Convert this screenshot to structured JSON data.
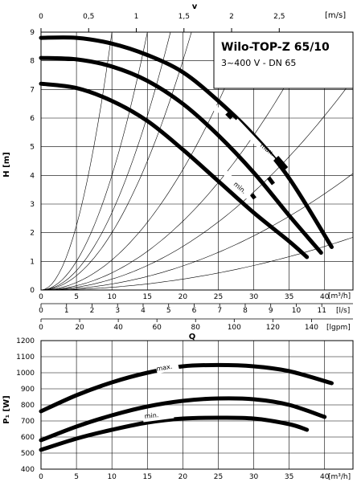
{
  "chart_data": [
    {
      "id": "hq",
      "type": "line",
      "title": "Wilo-TOP-Z 65/10",
      "subtitle": "3~400 V - DN 65",
      "ylabel": "H [m]",
      "x_unit": "[m³/h]",
      "ylim": [
        0,
        9
      ],
      "xlim": [
        0,
        44
      ],
      "x_ticks": [
        0,
        5,
        10,
        15,
        20,
        25,
        30,
        35,
        40
      ],
      "y_ticks": [
        0,
        1,
        2,
        3,
        4,
        5,
        6,
        7,
        8,
        9
      ],
      "grid": true,
      "secondary_axes": [
        {
          "id": "v",
          "label": "v",
          "unit": "[m/s]",
          "ticks": [
            "0",
            "0,5",
            "1",
            "1,5",
            "2",
            "2,5"
          ],
          "values_m3h": [
            0,
            6.72,
            13.44,
            20.16,
            26.88,
            33.6
          ]
        },
        {
          "id": "ls",
          "unit": "[l/s]",
          "ticks": [
            "0",
            "1",
            "2",
            "3",
            "4",
            "5",
            "6",
            "7",
            "8",
            "9",
            "10",
            "11"
          ],
          "values_m3h": [
            0,
            3.6,
            7.2,
            10.8,
            14.4,
            18,
            21.6,
            25.2,
            28.8,
            32.4,
            36,
            39.6
          ]
        },
        {
          "id": "lgpm",
          "unit": "[lgpm]",
          "ticks": [
            "0",
            "20",
            "40",
            "60",
            "80",
            "100",
            "120",
            "140"
          ],
          "values_m3h": [
            0,
            5.45,
            10.9,
            16.35,
            21.8,
            27.25,
            32.7,
            38.15
          ]
        }
      ],
      "x_axis_name": "Q",
      "series": [
        {
          "name": "max.",
          "x": [
            0,
            5,
            10,
            15,
            20,
            25,
            30,
            35,
            41
          ],
          "y": [
            8.8,
            8.8,
            8.6,
            8.2,
            7.6,
            6.6,
            5.4,
            3.9,
            1.5
          ]
        },
        {
          "name": "",
          "x": [
            0,
            5,
            10,
            15,
            20,
            25,
            30,
            35,
            39.5
          ],
          "y": [
            8.1,
            8.05,
            7.8,
            7.3,
            6.5,
            5.4,
            4.1,
            2.6,
            1.3
          ]
        },
        {
          "name": "min.",
          "x": [
            0,
            5,
            10,
            15,
            20,
            25,
            30,
            35,
            37.5
          ],
          "y": [
            7.2,
            7.05,
            6.6,
            5.9,
            4.9,
            3.8,
            2.7,
            1.7,
            1.15
          ]
        }
      ]
    },
    {
      "id": "power",
      "type": "line",
      "ylabel": "P₁ [W]",
      "x_unit": "[m³/h]",
      "ylim": [
        400,
        1200
      ],
      "xlim": [
        0,
        44
      ],
      "x_ticks": [
        0,
        5,
        10,
        15,
        20,
        25,
        30,
        35,
        40
      ],
      "y_ticks": [
        400,
        500,
        600,
        700,
        800,
        900,
        1000,
        1100,
        1200
      ],
      "grid": true,
      "series": [
        {
          "name": "max.",
          "x": [
            0,
            5,
            10,
            15,
            20,
            25,
            30,
            35,
            41
          ],
          "y": [
            760,
            860,
            940,
            1000,
            1040,
            1048,
            1040,
            1010,
            935
          ]
        },
        {
          "name": "",
          "x": [
            0,
            5,
            10,
            15,
            20,
            25,
            30,
            35,
            40
          ],
          "y": [
            580,
            665,
            735,
            790,
            825,
            840,
            835,
            800,
            725
          ]
        },
        {
          "name": "min.",
          "x": [
            0,
            5,
            10,
            15,
            20,
            25,
            30,
            35,
            37.5
          ],
          "y": [
            520,
            590,
            645,
            690,
            715,
            720,
            715,
            680,
            645
          ]
        }
      ]
    }
  ]
}
